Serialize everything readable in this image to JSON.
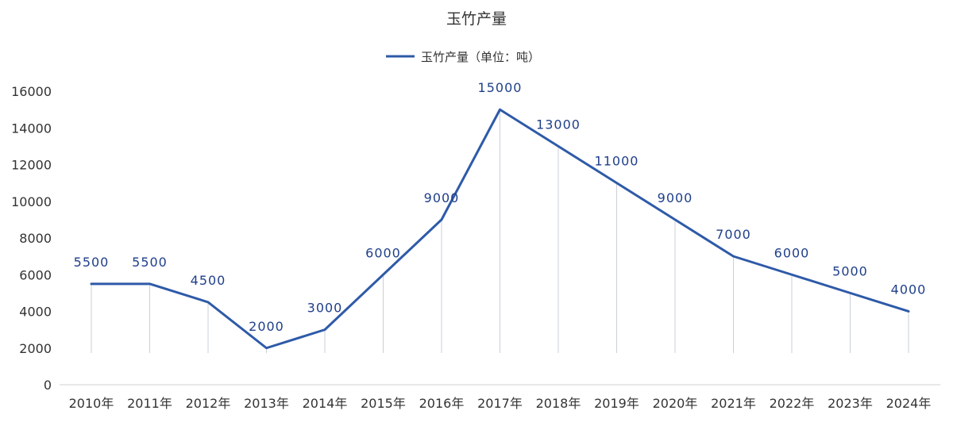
{
  "chart_data": {
    "type": "line",
    "title": "玉竹产量",
    "categories": [
      "2010年",
      "2011年",
      "2012年",
      "2013年",
      "2014年",
      "2015年",
      "2016年",
      "2017年",
      "2018年",
      "2019年",
      "2020年",
      "2021年",
      "2022年",
      "2023年",
      "2024年"
    ],
    "series": [
      {
        "name": "玉竹产量（单位：吨）",
        "values": [
          5500,
          5500,
          4500,
          2000,
          3000,
          6000,
          9000,
          15000,
          13000,
          11000,
          9000,
          7000,
          6000,
          5000,
          4000
        ],
        "color": "#2e5aa8"
      }
    ],
    "ylim": [
      0,
      16000
    ],
    "yticks": [
      0,
      2000,
      4000,
      6000,
      8000,
      10000,
      12000,
      14000,
      16000
    ],
    "xlabel": "",
    "ylabel": "",
    "legend": "top-center",
    "grid": false,
    "data_labels": true
  }
}
